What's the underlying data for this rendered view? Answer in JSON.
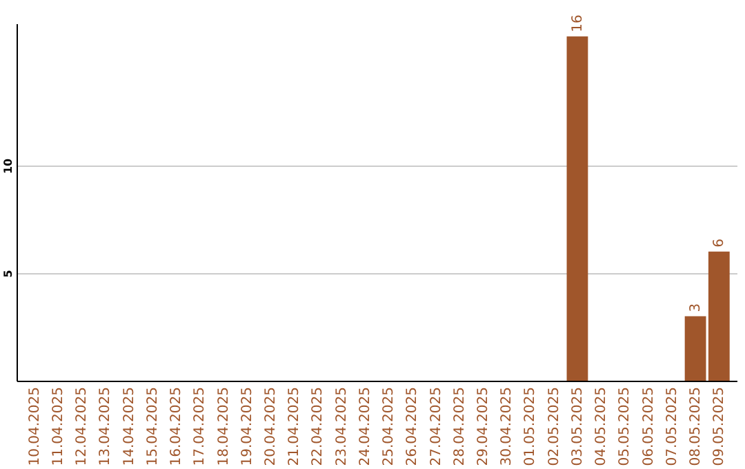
{
  "chart_data": {
    "type": "bar",
    "categories": [
      "10.04.2025",
      "11.04.2025",
      "12.04.2025",
      "13.04.2025",
      "14.04.2025",
      "15.04.2025",
      "16.04.2025",
      "17.04.2025",
      "18.04.2025",
      "19.04.2025",
      "20.04.2025",
      "21.04.2025",
      "22.04.2025",
      "23.04.2025",
      "24.04.2025",
      "25.04.2025",
      "26.04.2025",
      "27.04.2025",
      "28.04.2025",
      "29.04.2025",
      "30.04.2025",
      "01.05.2025",
      "02.05.2025",
      "03.05.2025",
      "04.05.2025",
      "05.05.2025",
      "06.05.2025",
      "07.05.2025",
      "08.05.2025",
      "09.05.2025"
    ],
    "values": [
      0,
      0,
      0,
      0,
      0,
      0,
      0,
      0,
      0,
      0,
      0,
      0,
      0,
      0,
      0,
      0,
      0,
      0,
      0,
      0,
      0,
      0,
      0,
      16,
      0,
      0,
      0,
      0,
      3,
      6
    ],
    "value_labels": [
      null,
      null,
      null,
      null,
      null,
      null,
      null,
      null,
      null,
      null,
      null,
      null,
      null,
      null,
      null,
      null,
      null,
      null,
      null,
      null,
      null,
      null,
      null,
      "16",
      null,
      null,
      null,
      null,
      "3",
      "6"
    ],
    "color": "#a0562b",
    "ylim": [
      0,
      16.6
    ],
    "yticks": [
      5,
      10
    ],
    "grid": "y"
  }
}
